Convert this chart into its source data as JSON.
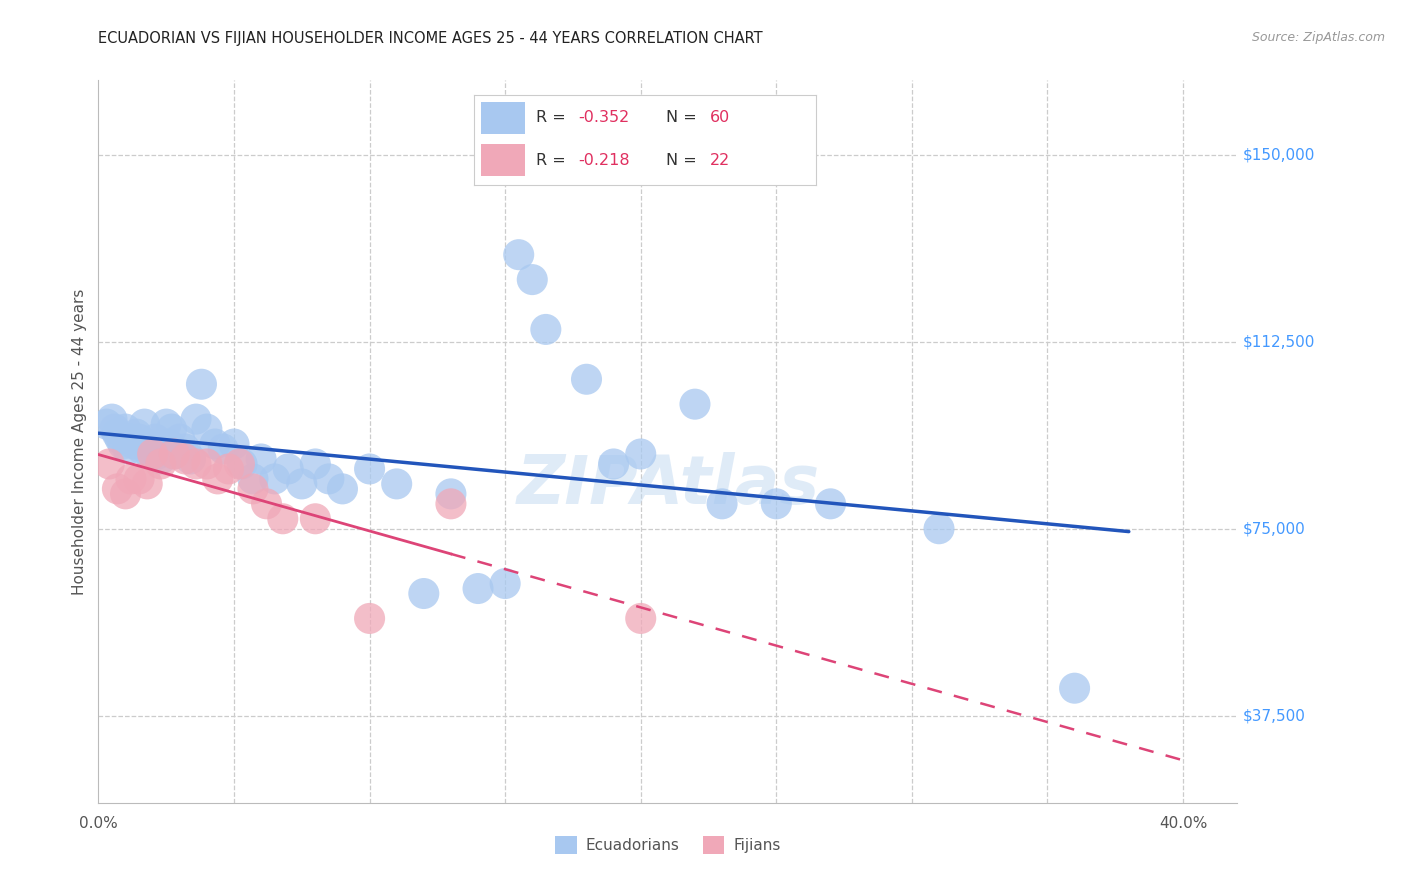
{
  "title": "ECUADORIAN VS FIJIAN HOUSEHOLDER INCOME AGES 25 - 44 YEARS CORRELATION CHART",
  "source": "Source: ZipAtlas.com",
  "ylabel": "Householder Income Ages 25 - 44 years",
  "xlim": [
    0.0,
    0.42
  ],
  "ylim": [
    20000,
    165000
  ],
  "ytick_vals": [
    37500,
    75000,
    112500,
    150000
  ],
  "ytick_labels": [
    "$37,500",
    "$75,000",
    "$112,500",
    "$150,000"
  ],
  "xtick_vals": [
    0.0,
    0.05,
    0.1,
    0.15,
    0.2,
    0.25,
    0.3,
    0.35,
    0.4
  ],
  "xtick_labels": [
    "0.0%",
    "",
    "",
    "",
    "",
    "",
    "",
    "",
    "40.0%"
  ],
  "background_color": "#ffffff",
  "grid_color": "#cccccc",
  "ecu_color": "#a8c8f0",
  "fij_color": "#f0a8b8",
  "ecu_line_color": "#2255bb",
  "fij_line_color": "#dd4477",
  "ecu_r": "-0.352",
  "ecu_n": "60",
  "fij_r": "-0.218",
  "fij_n": "22",
  "legend_label_color": "#e03060",
  "watermark": "ZIPAtlas",
  "ecu_x": [
    0.003,
    0.005,
    0.006,
    0.007,
    0.008,
    0.009,
    0.01,
    0.011,
    0.012,
    0.013,
    0.014,
    0.015,
    0.016,
    0.017,
    0.018,
    0.019,
    0.02,
    0.021,
    0.022,
    0.023,
    0.025,
    0.026,
    0.027,
    0.028,
    0.03,
    0.032,
    0.034,
    0.036,
    0.038,
    0.04,
    0.043,
    0.046,
    0.05,
    0.053,
    0.057,
    0.06,
    0.065,
    0.07,
    0.075,
    0.08,
    0.085,
    0.09,
    0.1,
    0.11,
    0.12,
    0.13,
    0.14,
    0.15,
    0.155,
    0.16,
    0.165,
    0.18,
    0.19,
    0.2,
    0.22,
    0.23,
    0.25,
    0.27,
    0.31,
    0.36
  ],
  "ecu_y": [
    96000,
    97000,
    95000,
    94000,
    93000,
    92000,
    95000,
    91000,
    93000,
    92000,
    94000,
    93000,
    91000,
    96000,
    92000,
    90000,
    91000,
    93000,
    90000,
    89000,
    96000,
    92000,
    95000,
    90000,
    93000,
    91000,
    89000,
    97000,
    104000,
    95000,
    92000,
    91000,
    92000,
    88000,
    85000,
    89000,
    85000,
    87000,
    84000,
    88000,
    85000,
    83000,
    87000,
    84000,
    62000,
    82000,
    63000,
    64000,
    130000,
    125000,
    115000,
    105000,
    88000,
    90000,
    100000,
    80000,
    80000,
    80000,
    75000,
    43000
  ],
  "fij_x": [
    0.004,
    0.007,
    0.01,
    0.012,
    0.015,
    0.018,
    0.02,
    0.023,
    0.028,
    0.032,
    0.036,
    0.04,
    0.044,
    0.048,
    0.052,
    0.057,
    0.062,
    0.068,
    0.08,
    0.1,
    0.13,
    0.2
  ],
  "fij_y": [
    88000,
    83000,
    82000,
    85000,
    85000,
    84000,
    90000,
    88000,
    90000,
    89000,
    88000,
    88000,
    85000,
    87000,
    88000,
    83000,
    80000,
    77000,
    77000,
    57000,
    80000,
    57000
  ]
}
